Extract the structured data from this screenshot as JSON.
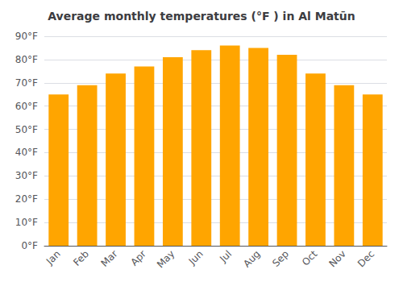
{
  "chart_data": {
    "type": "bar",
    "title": "Average monthly temperatures (°F ) in Al Matūn",
    "categories": [
      "Jan",
      "Feb",
      "Mar",
      "Apr",
      "May",
      "Jun",
      "Jul",
      "Aug",
      "Sep",
      "Oct",
      "Nov",
      "Dec"
    ],
    "values": [
      65,
      69,
      74,
      77,
      81,
      84,
      86,
      85,
      82,
      74,
      69,
      65
    ],
    "color": "#FFA500",
    "ylim": [
      0,
      90
    ],
    "yticks": [
      {
        "value": 0,
        "label": "0°F"
      },
      {
        "value": 10,
        "label": "10°F"
      },
      {
        "value": 20,
        "label": "20°F"
      },
      {
        "value": 30,
        "label": "30°F"
      },
      {
        "value": 40,
        "label": "40°F"
      },
      {
        "value": 50,
        "label": "50°F"
      },
      {
        "value": 60,
        "label": "60°F"
      },
      {
        "value": 70,
        "label": "70°F"
      },
      {
        "value": 80,
        "label": "80°F"
      },
      {
        "value": 90,
        "label": "90°F"
      }
    ],
    "grid": true
  }
}
